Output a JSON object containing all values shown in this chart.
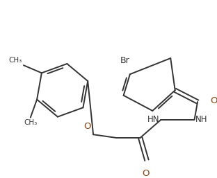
{
  "background_color": "#ffffff",
  "line_color": "#333333",
  "o_color": "#8B4513",
  "n_color": "#333333",
  "br_color": "#333333",
  "line_width": 1.4,
  "figsize": [
    3.12,
    2.57
  ],
  "dpi": 100,
  "xlim": [
    0,
    312
  ],
  "ylim": [
    0,
    257
  ]
}
